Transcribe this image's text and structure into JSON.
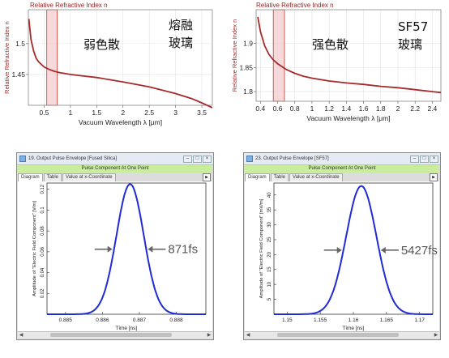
{
  "top_left": {
    "ylabel_title": "Relative Refractive Index n",
    "xlabel": "Vacuum Wavelength λ [μm]",
    "annotation_center": "弱色散",
    "annotation_right_1": "熔融",
    "annotation_right_2": "玻璃",
    "chart_data": {
      "type": "line",
      "xlabel": "Vacuum Wavelength λ [μm]",
      "ylabel": "Relative Refractive Index n",
      "xlim": [
        0.2,
        3.7
      ],
      "ylim": [
        1.4,
        1.555
      ],
      "x_ticks": [
        "0.5",
        "1",
        "1.5",
        "2",
        "2.5",
        "3",
        "3.5"
      ],
      "y_ticks": [
        "1.45",
        "1.5"
      ],
      "series": [
        {
          "x": [
            0.21,
            0.25,
            0.3,
            0.35,
            0.4,
            0.5,
            0.6,
            0.7,
            0.8,
            1.0,
            1.2,
            1.5,
            2.0,
            2.5,
            3.0,
            3.3,
            3.5,
            3.7
          ],
          "y": [
            1.54,
            1.507,
            1.488,
            1.476,
            1.47,
            1.462,
            1.458,
            1.455,
            1.453,
            1.45,
            1.448,
            1.445,
            1.438,
            1.43,
            1.419,
            1.411,
            1.404,
            1.396
          ]
        }
      ],
      "highlight_band": [
        0.55,
        0.75
      ]
    }
  },
  "top_right": {
    "ylabel_title": "Relative Refractive Index n",
    "xlabel": "Vacuum Wavelength λ [μm]",
    "annotation_center": "强色散",
    "annotation_right_1": "SF57",
    "annotation_right_2": "玻璃",
    "chart_data": {
      "type": "line",
      "xlabel": "Vacuum Wavelength λ [μm]",
      "ylabel": "Relative Refractive Index n",
      "xlim": [
        0.35,
        2.5
      ],
      "ylim": [
        1.78,
        1.97
      ],
      "x_ticks": [
        "0.4",
        "0.6",
        "0.8",
        "1",
        "1.2",
        "1.4",
        "1.6",
        "1.8",
        "2",
        "2.2",
        "2.4"
      ],
      "y_ticks": [
        "1.8",
        "1.85",
        "1.9"
      ],
      "series": [
        {
          "x": [
            0.37,
            0.4,
            0.45,
            0.5,
            0.55,
            0.6,
            0.7,
            0.8,
            0.9,
            1.0,
            1.2,
            1.4,
            1.6,
            1.8,
            2.0,
            2.2,
            2.4,
            2.5
          ],
          "y": [
            1.955,
            1.925,
            1.895,
            1.877,
            1.866,
            1.858,
            1.846,
            1.838,
            1.832,
            1.828,
            1.822,
            1.818,
            1.815,
            1.811,
            1.808,
            1.804,
            1.8,
            1.798
          ]
        }
      ],
      "highlight_band": [
        0.55,
        0.68
      ]
    }
  },
  "bottom_left": {
    "window_title": "19. Output Pulse Envelope [Fused Silica]",
    "banner": "Pulse Component At One Point",
    "tabs": [
      "Diagram",
      "Table",
      "Value at x-Coordinate"
    ],
    "ylabel": "Amplitude of \"Electric Field Component\" [V/m]",
    "xlabel": "Time [ns]",
    "arrow_label": "871fs",
    "chart_data": {
      "type": "line",
      "xlabel": "Time [ns]",
      "ylabel": "Amplitude of \"Electric Field Component\" [V/m]",
      "xlim": [
        0.8845,
        0.8888
      ],
      "ylim": [
        0,
        0.126
      ],
      "x_ticks": [
        "0.885",
        "0.886",
        "0.887",
        "0.888"
      ],
      "y_ticks": [
        "0.02",
        "0.04",
        "0.06",
        "0.08",
        "0.1",
        "0.12"
      ],
      "series": [
        {
          "center": 0.88675,
          "fwhm": 0.00087,
          "peak": 0.125
        }
      ]
    }
  },
  "bottom_right": {
    "window_title": "23. Output Pulse Envelope [SF57]",
    "banner": "Pulse Component At One Point",
    "tabs": [
      "Diagram",
      "Table",
      "Value at x-Coordinate"
    ],
    "ylabel": "Amplitude of \"Electric Field Component\" [mV/m]",
    "xlabel": "Time [ns]",
    "arrow_label": "5427fs",
    "chart_data": {
      "type": "line",
      "xlabel": "Time [ns]",
      "ylabel": "Amplitude of \"Electric Field Component\" [mV/m]",
      "xlim": [
        1.148,
        1.172
      ],
      "ylim": [
        0,
        44
      ],
      "x_ticks": [
        "1.15",
        "1.155",
        "1.16",
        "1.165",
        "1.17"
      ],
      "y_ticks": [
        "5",
        "10",
        "15",
        "20",
        "25",
        "30",
        "35",
        "40"
      ],
      "series": [
        {
          "center": 1.1612,
          "fwhm": 0.0054,
          "peak": 43
        }
      ]
    }
  }
}
